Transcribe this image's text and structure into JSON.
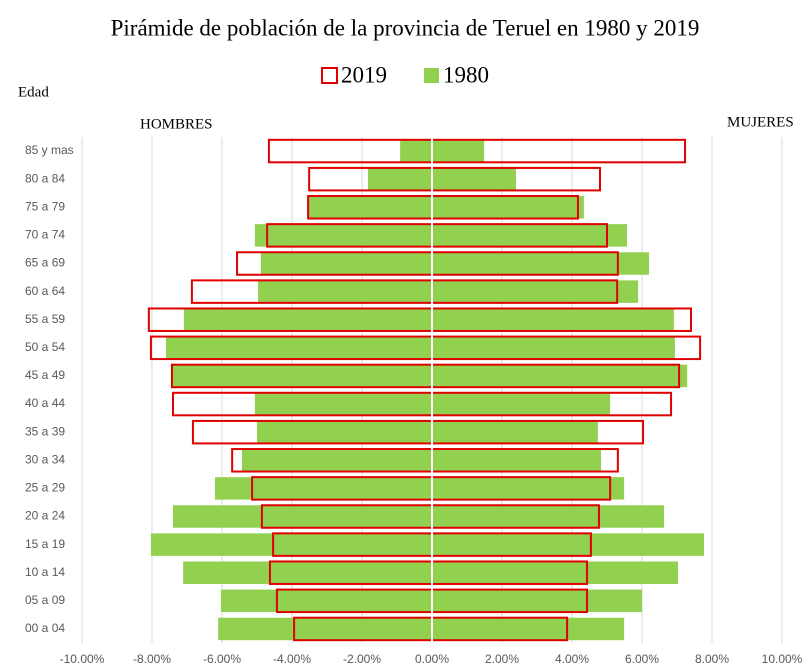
{
  "chart_data": {
    "type": "population_pyramid",
    "title": "Pirámide de población de la provincia de Teruel en 1980 y 2019",
    "y_axis_label": "Edad",
    "left_label": "HOMBRES",
    "right_label": "MUJERES",
    "categories": [
      "85 y mas",
      "80 a 84",
      "75 a 79",
      "70 a 74",
      "65 a 69",
      "60 a 64",
      "55 a 59",
      "50 a 54",
      "45 a 49",
      "40 a 44",
      "35 a 39",
      "30 a 34",
      "25 a 29",
      "20 a 24",
      "15 a 19",
      "10 a 14",
      "05 a 09",
      "00 a 04"
    ],
    "series": [
      {
        "name": "2019",
        "color": "#e00000",
        "style": "outline",
        "hombres": [
          -4.66,
          -3.51,
          -3.54,
          -4.71,
          -5.57,
          -6.86,
          -8.09,
          -8.03,
          -7.43,
          -7.4,
          -6.83,
          -5.71,
          -5.14,
          -4.86,
          -4.54,
          -4.63,
          -4.43,
          -3.94
        ],
        "mujeres": [
          7.23,
          4.8,
          4.17,
          5.0,
          5.31,
          5.29,
          7.4,
          7.66,
          7.06,
          6.83,
          6.03,
          5.31,
          5.09,
          4.77,
          4.54,
          4.43,
          4.43,
          3.86
        ]
      },
      {
        "name": "1980",
        "color": "#92d050",
        "style": "filled",
        "hombres": [
          -0.91,
          -1.83,
          -3.54,
          -5.06,
          -4.89,
          -4.97,
          -7.09,
          -7.6,
          -7.43,
          -5.06,
          -5.0,
          -5.43,
          -6.2,
          -7.4,
          -8.03,
          -7.11,
          -6.03,
          -6.11
        ],
        "mujeres": [
          1.49,
          2.4,
          4.34,
          5.57,
          6.2,
          5.89,
          6.91,
          6.94,
          7.29,
          5.09,
          4.74,
          4.83,
          5.49,
          6.63,
          7.77,
          7.03,
          6.0,
          5.49
        ]
      }
    ],
    "xlim": [
      -10,
      10
    ],
    "xticks": [
      {
        "value": -10,
        "label": "-10.00%"
      },
      {
        "value": -8,
        "label": "-8.00%"
      },
      {
        "value": -6,
        "label": "-6.00%"
      },
      {
        "value": -4,
        "label": "-4.00%"
      },
      {
        "value": -2,
        "label": "-2.00%"
      },
      {
        "value": 0,
        "label": "0.00%"
      },
      {
        "value": 2,
        "label": "2.00%"
      },
      {
        "value": 4,
        "label": "4.00%"
      },
      {
        "value": 6,
        "label": "6.00%"
      },
      {
        "value": 8,
        "label": "8.00%"
      },
      {
        "value": 10,
        "label": "10.00%"
      }
    ],
    "grid": true
  }
}
